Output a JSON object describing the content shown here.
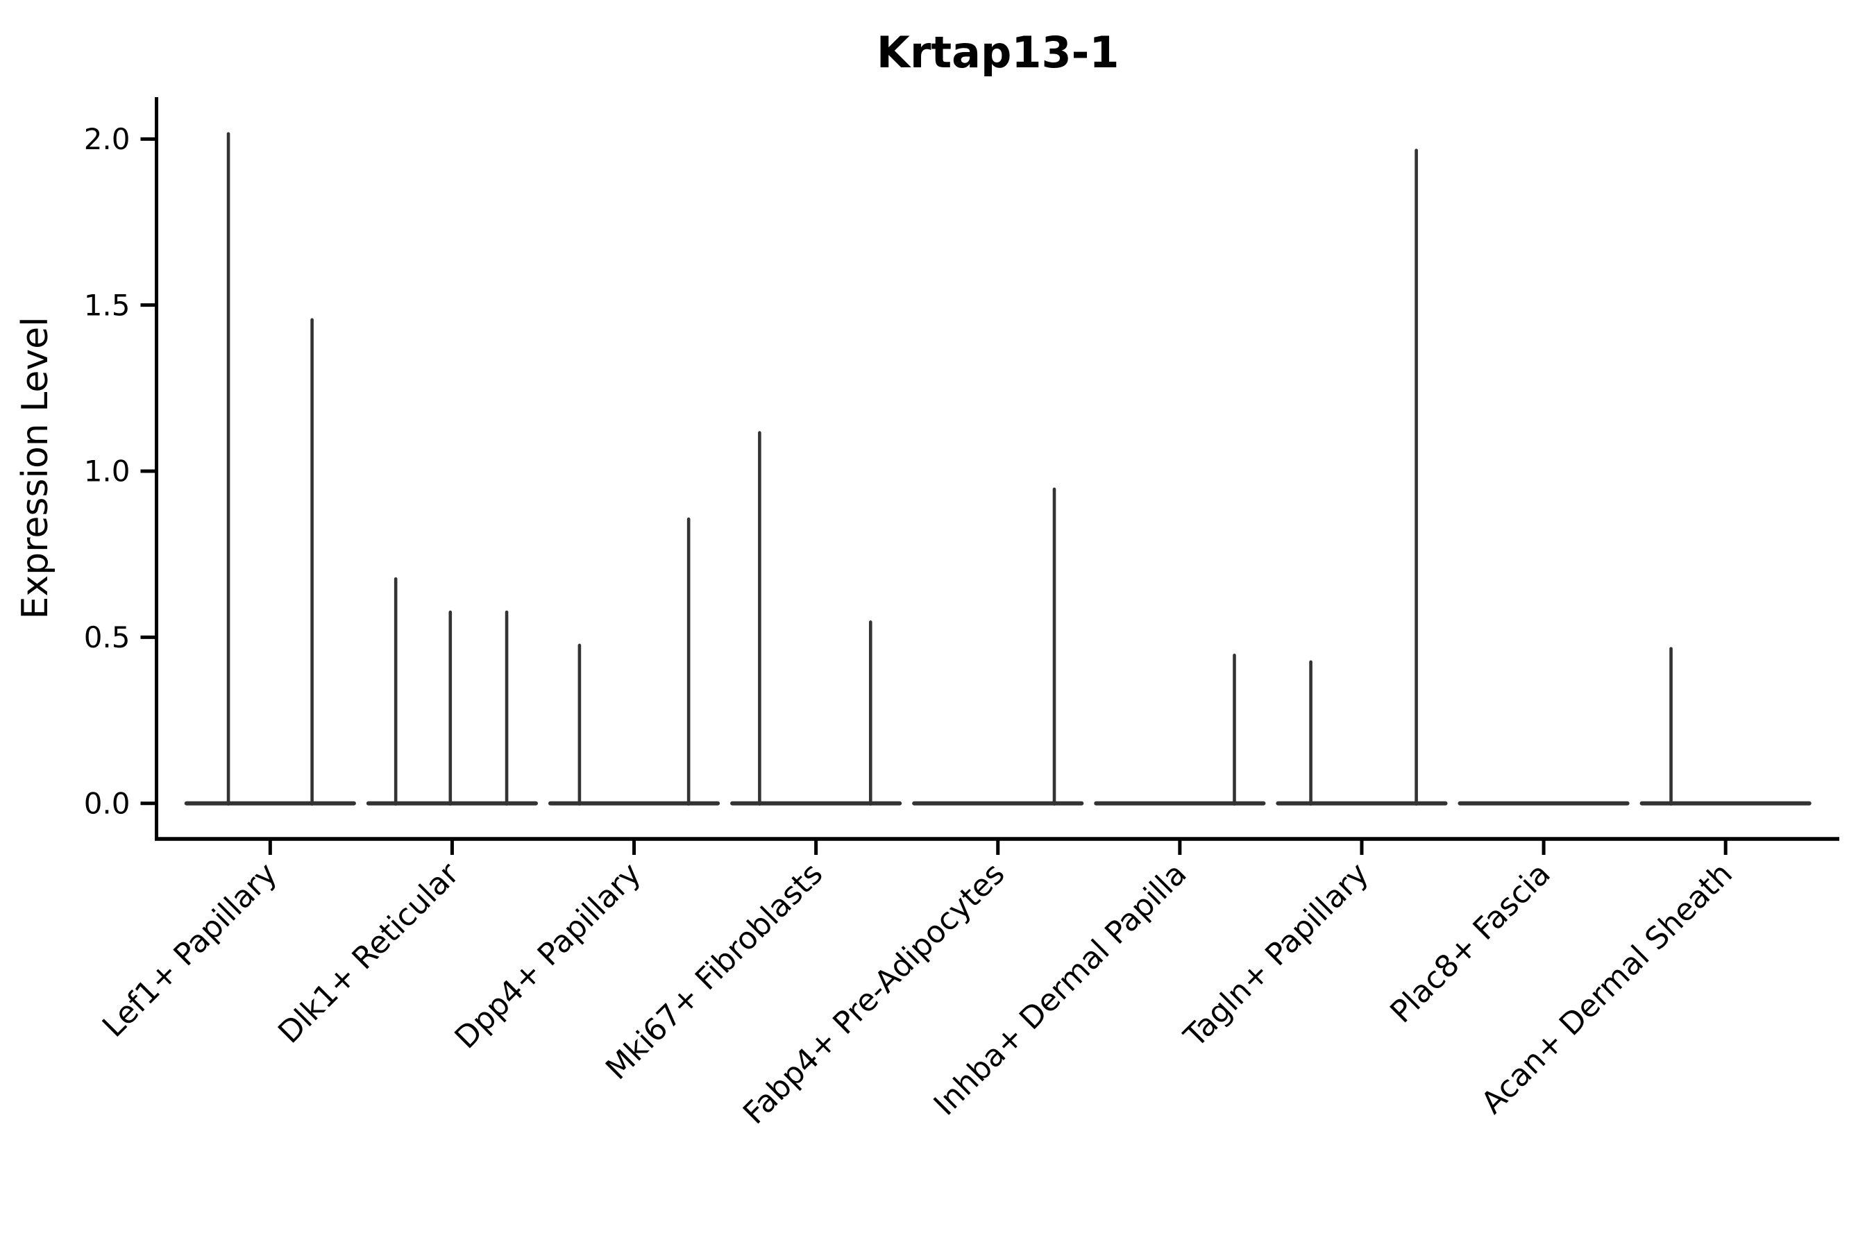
{
  "figure": {
    "title": "Krtap13-1",
    "ylabel": "Expression Level"
  },
  "chart_data": {
    "type": "violin",
    "title": "Krtap13-1",
    "xlabel": "",
    "ylabel": "Expression Level",
    "ylim": [
      -0.107,
      2.126
    ],
    "yticks": [
      0.0,
      0.5,
      1.0,
      1.5,
      2.0
    ],
    "ytick_labels": [
      "0.0",
      "0.5",
      "1.0",
      "1.5",
      "2.0"
    ],
    "grid": false,
    "legend_position": "none",
    "background_color": "#ffffff",
    "violin_color": "#333333",
    "axis_color": "#000000",
    "text_color": "#000000",
    "categories": [
      "Lef1+ Papillary",
      "Dlk1+ Reticular",
      "Dpp4+ Papillary",
      "Mki67+ Fibroblasts",
      "Fabp4+ Pre-Adipocytes",
      "Inhba+ Dermal Papilla",
      "Tagln+ Papillary",
      "Plac8+ Fascia",
      "Acan+ Dermal Sheath"
    ],
    "violin_half_width": 0.46,
    "description": "Sparse single-cell expression: each violin collapses to a flat bar at 0 with thin vertical density spikes reaching the max expression values",
    "series": [
      {
        "name": "Lef1+ Papillary",
        "spikes": [
          {
            "offset": -0.23,
            "value": 2.02
          },
          {
            "offset": 0.23,
            "value": 1.46
          }
        ]
      },
      {
        "name": "Dlk1+ Reticular",
        "spikes": [
          {
            "offset": -0.31,
            "value": 0.68
          },
          {
            "offset": -0.01,
            "value": 0.58
          },
          {
            "offset": 0.3,
            "value": 0.58
          }
        ]
      },
      {
        "name": "Dpp4+ Papillary",
        "spikes": [
          {
            "offset": -0.3,
            "value": 0.48
          },
          {
            "offset": 0.3,
            "value": 0.86
          }
        ]
      },
      {
        "name": "Mki67+ Fibroblasts",
        "spikes": [
          {
            "offset": -0.31,
            "value": 1.12
          },
          {
            "offset": 0.3,
            "value": 0.55
          }
        ]
      },
      {
        "name": "Fabp4+ Pre-Adipocytes",
        "spikes": [
          {
            "offset": 0.31,
            "value": 0.95
          }
        ]
      },
      {
        "name": "Inhba+ Dermal Papilla",
        "spikes": [
          {
            "offset": 0.3,
            "value": 0.45
          }
        ]
      },
      {
        "name": "Tagln+ Papillary",
        "spikes": [
          {
            "offset": -0.28,
            "value": 0.43
          },
          {
            "offset": 0.3,
            "value": 1.97
          }
        ]
      },
      {
        "name": "Plac8+ Fascia",
        "spikes": []
      },
      {
        "name": "Acan+ Dermal Sheath",
        "spikes": [
          {
            "offset": -0.3,
            "value": 0.47
          }
        ]
      }
    ]
  }
}
